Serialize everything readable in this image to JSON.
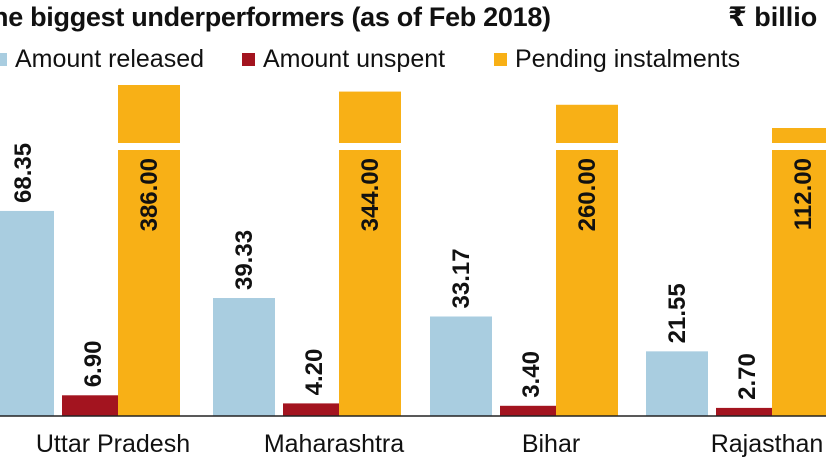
{
  "title": "he biggest underperformers (as of Feb 2018)",
  "unit": "₹ billio",
  "colors": {
    "amount_released": "#a9cde0",
    "amount_unspent": "#a3141f",
    "pending_instalments": "#f8b016",
    "baseline": "#222222"
  },
  "chart_data": {
    "type": "bar",
    "categories": [
      "Uttar Pradesh",
      "Maharashtra",
      "Bihar",
      "Rajasthan"
    ],
    "series": [
      {
        "name": "Amount released",
        "values": [
          68.35,
          39.33,
          33.17,
          21.55
        ],
        "labels": [
          "68.35",
          "39.33",
          "33.17",
          "21.55"
        ]
      },
      {
        "name": "Amount unspent",
        "values": [
          6.9,
          4.2,
          3.4,
          2.7
        ],
        "labels": [
          "6.90",
          "4.20",
          "3.40",
          "2.70"
        ]
      },
      {
        "name": "Pending instalments",
        "values": [
          386.0,
          344.0,
          260.0,
          112.0
        ],
        "labels": [
          "386.00",
          "344.00",
          "260.00",
          "112.00"
        ]
      }
    ],
    "scale_break": true,
    "grid": false,
    "legend_position": "top-left"
  }
}
